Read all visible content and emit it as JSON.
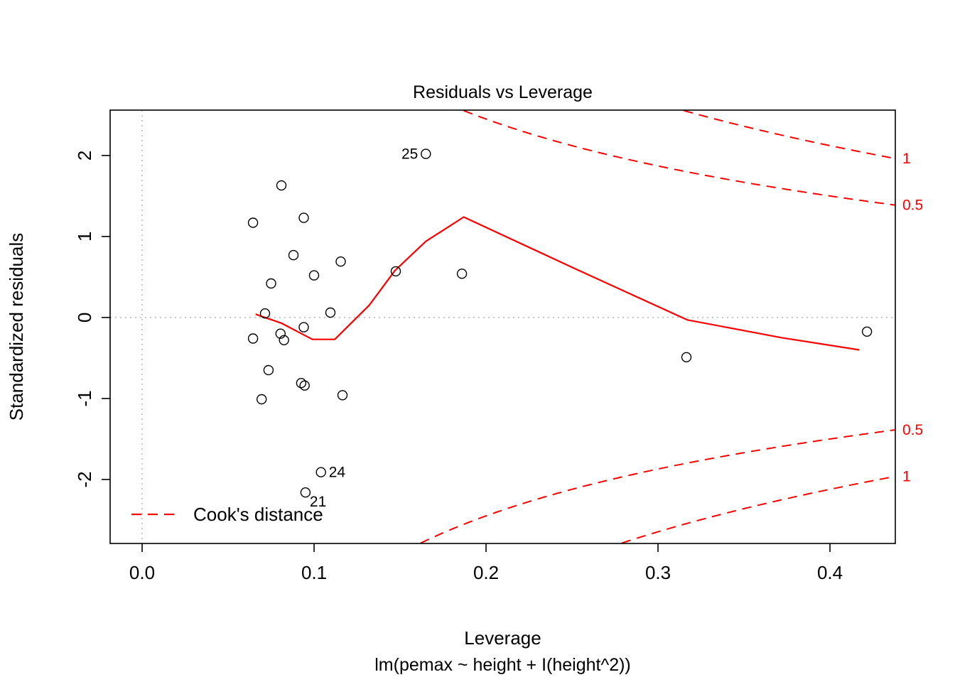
{
  "chart_data": {
    "type": "scatter",
    "title": "Residuals vs Leverage",
    "xlabel": "Leverage",
    "sublabel": "lm(pemax ~ height + I(height^2))",
    "ylabel": "Standardized residuals",
    "xlim": [
      -0.0186,
      0.438
    ],
    "ylim": [
      -2.79,
      2.56
    ],
    "grid": false,
    "xticks": {
      "values": [
        0,
        0.1,
        0.2,
        0.3,
        0.4
      ],
      "labels": [
        "0.0",
        "0.1",
        "0.2",
        "0.3",
        "0.4"
      ]
    },
    "yticks": {
      "values": [
        -2,
        -1,
        0,
        1,
        2
      ],
      "labels": [
        "-2",
        "-1",
        "0",
        "1",
        "2"
      ]
    },
    "reference_lines": {
      "vline_x": 0,
      "hline_y": 0
    },
    "points": [
      {
        "x": 0.165,
        "y": 2.02,
        "label": "25",
        "label_side": "left"
      },
      {
        "x": 0.081,
        "y": 1.63
      },
      {
        "x": 0.094,
        "y": 1.23
      },
      {
        "x": 0.0645,
        "y": 1.17
      },
      {
        "x": 0.088,
        "y": 0.77
      },
      {
        "x": 0.1155,
        "y": 0.69
      },
      {
        "x": 0.1,
        "y": 0.52
      },
      {
        "x": 0.075,
        "y": 0.42
      },
      {
        "x": 0.1475,
        "y": 0.57
      },
      {
        "x": 0.186,
        "y": 0.54
      },
      {
        "x": 0.0715,
        "y": 0.05
      },
      {
        "x": 0.1095,
        "y": 0.06
      },
      {
        "x": 0.094,
        "y": -0.12
      },
      {
        "x": 0.0805,
        "y": -0.2
      },
      {
        "x": 0.0825,
        "y": -0.28
      },
      {
        "x": 0.0645,
        "y": -0.26
      },
      {
        "x": 0.0735,
        "y": -0.65
      },
      {
        "x": 0.0925,
        "y": -0.81
      },
      {
        "x": 0.0945,
        "y": -0.84
      },
      {
        "x": 0.0695,
        "y": -1.01
      },
      {
        "x": 0.1165,
        "y": -0.96
      },
      {
        "x": 0.3165,
        "y": -0.49
      },
      {
        "x": 0.4215,
        "y": -0.175
      },
      {
        "x": 0.104,
        "y": -1.91,
        "label": "24",
        "label_side": "right"
      },
      {
        "x": 0.095,
        "y": -2.16,
        "label": "21",
        "label_side": "below-right"
      }
    ],
    "smooth_line": {
      "points": [
        [
          0.066,
          0.04
        ],
        [
          0.081,
          -0.07
        ],
        [
          0.099,
          -0.27
        ],
        [
          0.112,
          -0.27
        ],
        [
          0.132,
          0.15
        ],
        [
          0.147,
          0.58
        ],
        [
          0.165,
          0.94
        ],
        [
          0.187,
          1.24
        ],
        [
          0.252,
          0.6
        ],
        [
          0.317,
          -0.03
        ],
        [
          0.372,
          -0.25
        ],
        [
          0.417,
          -0.4
        ]
      ]
    },
    "cooks_contours": {
      "levels": [
        0.5,
        1
      ],
      "n_params": 3
    },
    "contour_labels": [
      {
        "text": "1",
        "level": 1,
        "sign": 1
      },
      {
        "text": "0.5",
        "level": 0.5,
        "sign": 1
      },
      {
        "text": "0.5",
        "level": 0.5,
        "sign": -1
      },
      {
        "text": "1",
        "level": 1,
        "sign": -1
      }
    ],
    "legend": {
      "label": "Cook's distance"
    },
    "colors": {
      "points": "#000000",
      "smooth": "#ff0000",
      "contour": "#ff0000",
      "reference": "#bcbcbc",
      "axis": "#000000"
    }
  }
}
